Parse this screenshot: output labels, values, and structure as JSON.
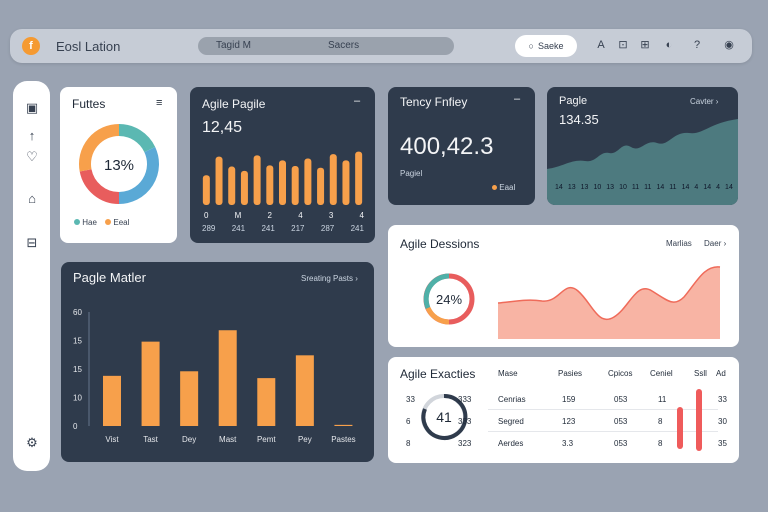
{
  "header": {
    "title": "Eosl Lation",
    "search_left": "Tagid M",
    "search_right": "Sacers",
    "search_button": "Saeke",
    "icon_labels": [
      "A",
      "⊡",
      "⊞",
      "◐",
      "?",
      "◉"
    ]
  },
  "cards": {
    "futes": {
      "title": "Futtes",
      "center_value": "13%",
      "legend": [
        "Hae",
        "Eeal"
      ],
      "colors": [
        "#5bb8b2",
        "#5aa9d6",
        "#e85d5d",
        "#f7a04b"
      ],
      "shares": [
        0.18,
        0.32,
        0.22,
        0.28
      ]
    },
    "agile_pagile": {
      "title": "Agile Pagile",
      "value": "12,45",
      "x_top": [
        "0",
        "M",
        "2",
        "4",
        "3",
        "4"
      ],
      "x_bottom": [
        "289",
        "241",
        "241",
        "217",
        "287",
        "241"
      ],
      "bars": [
        0.48,
        0.78,
        0.62,
        0.55,
        0.8,
        0.64,
        0.72,
        0.63,
        0.75,
        0.6,
        0.82,
        0.72,
        0.86
      ]
    },
    "tency": {
      "title": "Tency Fnfiey",
      "value": "400,42.3",
      "sub": "Pagiel",
      "legend": "Eaal"
    },
    "pagle": {
      "title": "Pagle",
      "link": "Cavter",
      "value": "134.35",
      "x_labels": [
        "14",
        "13",
        "13",
        "10",
        "13",
        "10",
        "11",
        "11",
        "14",
        "11",
        "14",
        "4",
        "14",
        "4",
        "14"
      ]
    },
    "pagle_matler": {
      "title": "Pagle Matler",
      "link": "Sreating Pasts",
      "y_ticks": [
        "60",
        "15",
        "15",
        "10",
        "0"
      ],
      "categories": [
        "Vist",
        "Tast",
        "Dey",
        "Mast",
        "Pemt",
        "Pey",
        "Pastes"
      ],
      "values": [
        22,
        37,
        24,
        42,
        21,
        31,
        0.5
      ]
    },
    "agile_dessions": {
      "title": "Agile Dessions",
      "link1": "Marlias",
      "link2": "Daer",
      "donut_value": "24%"
    },
    "agile_exacties": {
      "title": "Agile Exacties",
      "headers": [
        "Mase",
        "Pasies",
        "Cpicos",
        "Ceniel",
        "Ssll",
        "Ad"
      ],
      "rows": [
        {
          "left": "33",
          "mid": "333",
          "c1": "Cenrias",
          "c2": "159",
          "c3": "053",
          "c4": "11",
          "c5": "33"
        },
        {
          "left": "6",
          "mid": "333",
          "c1": "Segred",
          "c2": "123",
          "c3": "053",
          "c4": "8",
          "c5": "30"
        },
        {
          "left": "8",
          "mid": "323",
          "c1": "Aerdes",
          "c2": "3.3",
          "c3": "053",
          "c4": "8",
          "c5": "35"
        }
      ],
      "gauge_value": "41"
    }
  }
}
